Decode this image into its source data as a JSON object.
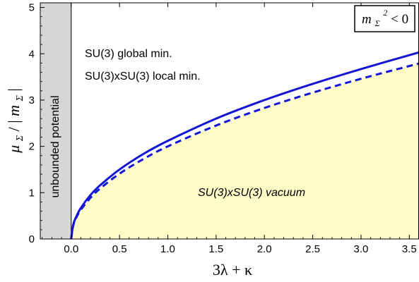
{
  "chart_data": {
    "type": "line",
    "title": "",
    "xlabel": "3λ + κ",
    "ylabel": "μΣ / |mΣ|",
    "xlim": [
      -0.32,
      3.6
    ],
    "ylim": [
      0,
      5.1
    ],
    "x_ticks": [
      0.0,
      0.5,
      1.0,
      1.5,
      2.0,
      2.5,
      3.0,
      3.5
    ],
    "x_tick_labels": [
      "0.0",
      "0.5",
      "1.0",
      "1.5",
      "2.0",
      "2.5",
      "3.0",
      "3.5"
    ],
    "y_ticks": [
      0,
      1,
      2,
      3,
      4,
      5
    ],
    "y_tick_labels": [
      "0",
      "1",
      "2",
      "3",
      "4",
      "5"
    ],
    "series": [
      {
        "style": "solid",
        "color": "#1515d6",
        "x": [
          0.0,
          0.02,
          0.05,
          0.1,
          0.2,
          0.3,
          0.5,
          0.75,
          1.0,
          1.5,
          2.0,
          2.5,
          3.0,
          3.6
        ],
        "y": [
          0.0,
          0.3,
          0.47,
          0.67,
          0.95,
          1.16,
          1.5,
          1.84,
          2.12,
          2.6,
          3.0,
          3.35,
          3.67,
          4.03
        ]
      },
      {
        "style": "dashed",
        "color": "#1515d6",
        "x": [
          0.0,
          0.02,
          0.05,
          0.1,
          0.2,
          0.3,
          0.5,
          0.75,
          1.0,
          1.5,
          2.0,
          2.5,
          3.0,
          3.6
        ],
        "y": [
          0.0,
          0.28,
          0.45,
          0.63,
          0.89,
          1.09,
          1.41,
          1.73,
          2.0,
          2.45,
          2.83,
          3.16,
          3.46,
          3.79
        ]
      }
    ],
    "regions": {
      "unbounded": {
        "x_range": [
          -0.32,
          0.0
        ],
        "color": "#d6d6d6",
        "label": "unbounded  potential"
      },
      "vacuum": {
        "color": "#fffbc6",
        "label": "SU(3)xSU(3)  vacuum"
      },
      "upper_label_1": "SU(3) global min.",
      "upper_label_2": "SU(3)xSU(3) local min."
    },
    "legend_box": {
      "text_m": "m",
      "text_sub": "Σ",
      "text_sup": "2",
      "text_rel": "< 0",
      "placement": "top-right"
    },
    "grid": false
  },
  "ylabel_parts": {
    "mu": "μ",
    "mu_sub": "Σ",
    "slash": " / |",
    "m": "m",
    "m_sub": "Σ",
    "end": "|"
  }
}
